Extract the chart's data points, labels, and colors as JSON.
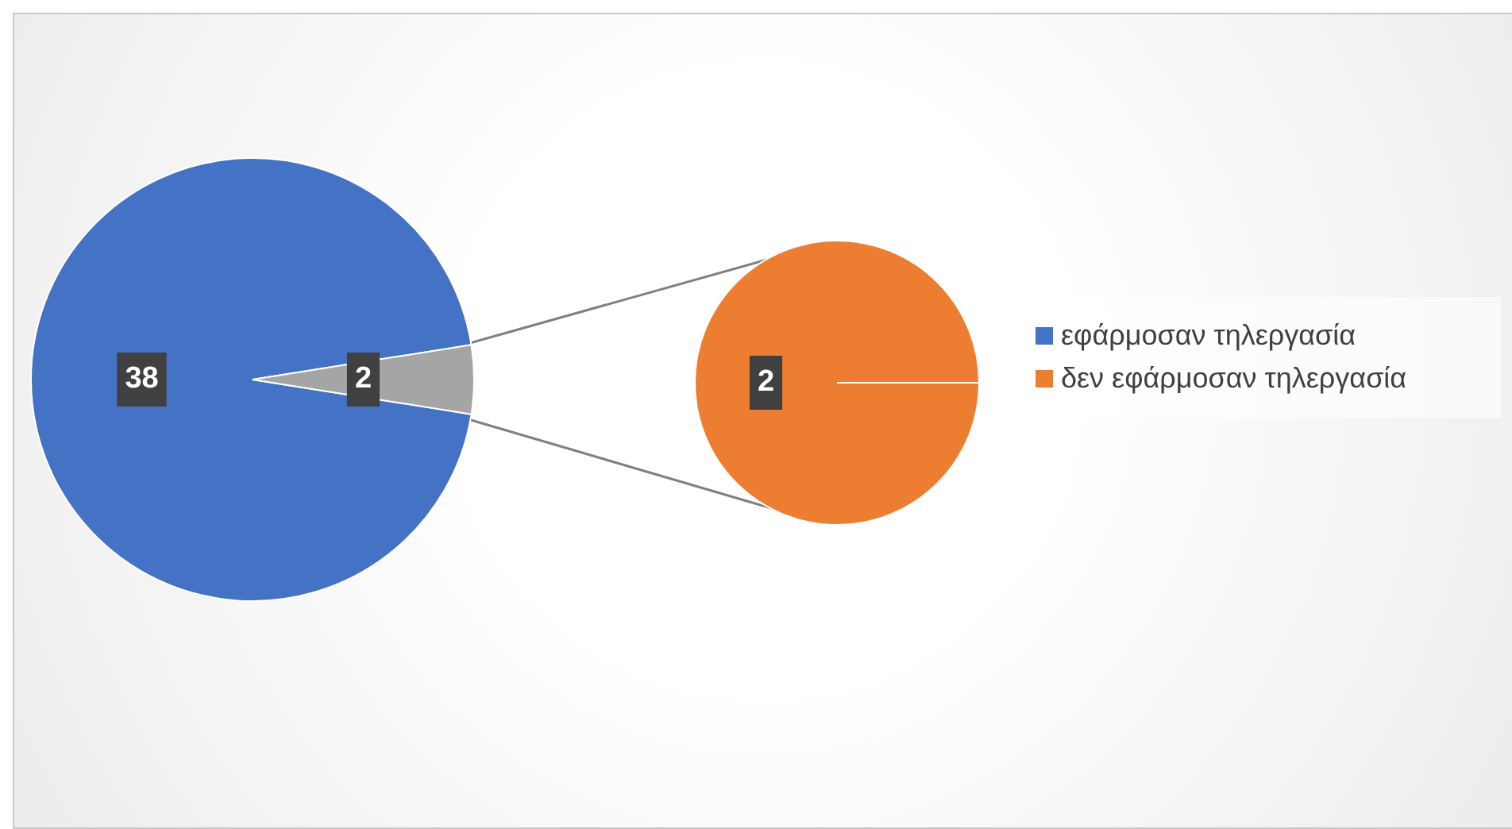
{
  "chart_data": [
    {
      "type": "pie",
      "categories": [
        "εφάρμοσαν τηλεργασία",
        null
      ],
      "values": [
        38,
        2
      ],
      "colors": [
        "#4472c4",
        "#a5a5a5"
      ],
      "data_labels": true,
      "legend": "right"
    },
    {
      "type": "pie",
      "categories": [
        "δεν εφάρμοσαν τηλεργασία"
      ],
      "values": [
        2
      ],
      "colors": [
        "#ed7d31"
      ],
      "data_labels": true,
      "legend": "right"
    }
  ]
}
